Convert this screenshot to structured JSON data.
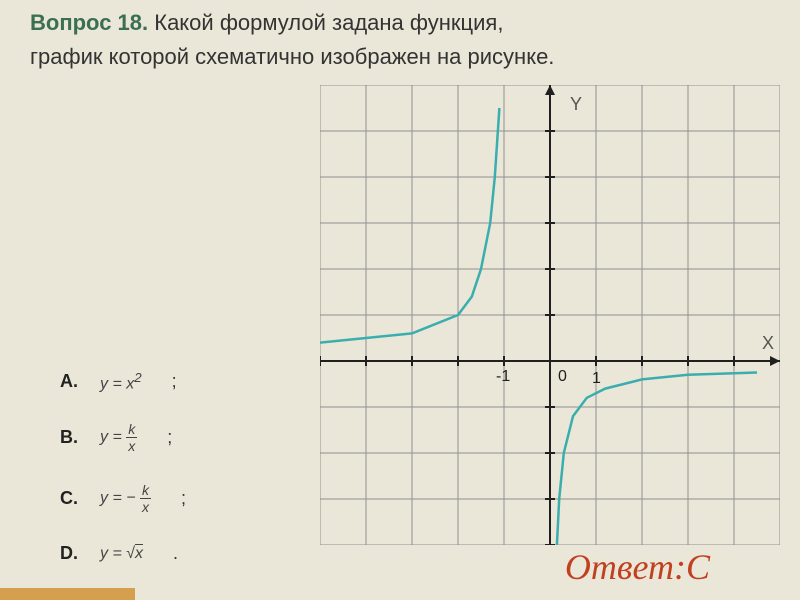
{
  "header": {
    "question_prefix": "Вопрос 18.",
    "question_text": " Какой формулой задана функция,",
    "subtitle": "график которой схематично изображен на рисунке."
  },
  "options": {
    "a": {
      "letter": "A.",
      "formula": "y = x²",
      "suffix": ";"
    },
    "b": {
      "letter": "B.",
      "formula_pre": "y = ",
      "num": "k",
      "den": "x",
      "suffix": ";"
    },
    "c": {
      "letter": "C.",
      "formula_pre": "y = − ",
      "num": "k",
      "den": "x",
      "suffix": ";"
    },
    "d": {
      "letter": "D.",
      "formula": "y = √x",
      "suffix": "."
    }
  },
  "chart": {
    "type": "line",
    "background_color": "#eae7d8",
    "grid_color": "#909090",
    "axis_color": "#202020",
    "curve_color": "#3aaeae",
    "curve_width": 2.5,
    "x_label": "X",
    "y_label": "Y",
    "label_color": "#555",
    "tick_labels": {
      "neg1": "-1",
      "zero": "0",
      "one": "1"
    },
    "grid_cols": 10,
    "grid_rows": 10,
    "origin_col": 5,
    "origin_row": 6,
    "curve1_points": [
      [
        -5,
        0.4
      ],
      [
        -4,
        0.5
      ],
      [
        -3,
        0.6
      ],
      [
        -2.5,
        0.8
      ],
      [
        -2,
        1.0
      ],
      [
        -1.7,
        1.4
      ],
      [
        -1.5,
        2.0
      ],
      [
        -1.3,
        3.0
      ],
      [
        -1.2,
        4.0
      ],
      [
        -1.1,
        5.5
      ]
    ],
    "curve2_points": [
      [
        0.1,
        -5.5
      ],
      [
        0.15,
        -4.0
      ],
      [
        0.2,
        -3.0
      ],
      [
        0.3,
        -2.0
      ],
      [
        0.5,
        -1.2
      ],
      [
        0.8,
        -0.8
      ],
      [
        1.2,
        -0.6
      ],
      [
        2.0,
        -0.4
      ],
      [
        3.0,
        -0.3
      ],
      [
        4.5,
        -0.25
      ]
    ]
  },
  "answer": {
    "text": "Ответ:C"
  }
}
